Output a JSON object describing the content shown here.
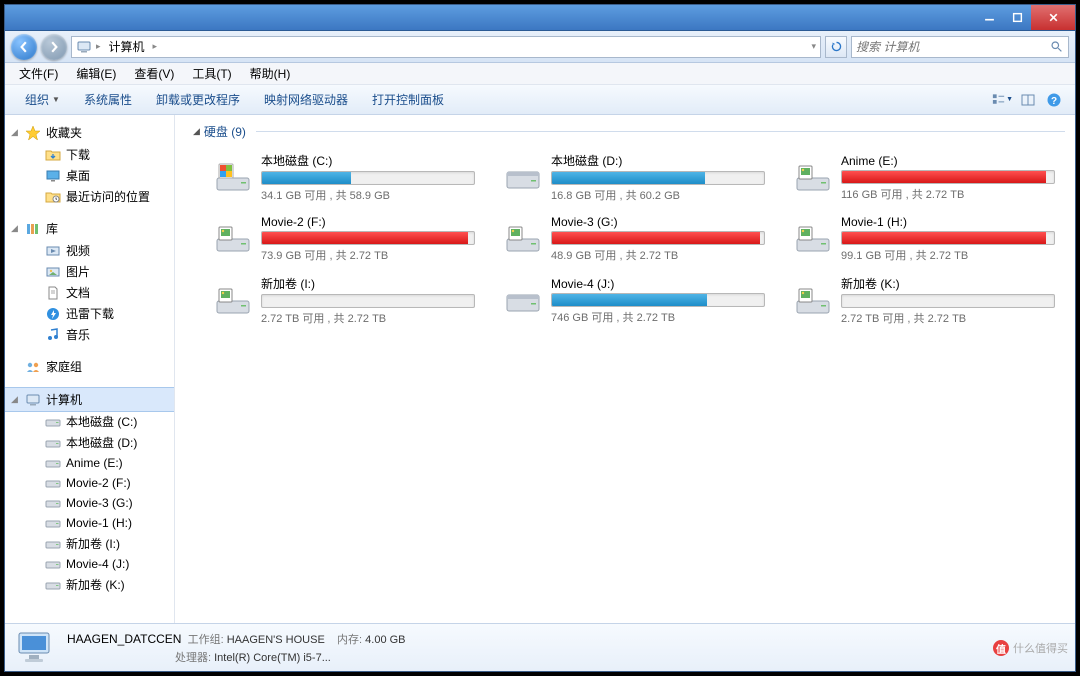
{
  "titlebar": {
    "min": "─",
    "max": "☐",
    "close": "✕"
  },
  "nav": {
    "address_crumb": "计算机",
    "search_placeholder": "搜索 计算机"
  },
  "menu": {
    "file": "文件(F)",
    "edit": "编辑(E)",
    "view": "查看(V)",
    "tools": "工具(T)",
    "help": "帮助(H)"
  },
  "toolbar": {
    "organize": "组织",
    "properties": "系统属性",
    "uninstall": "卸载或更改程序",
    "mapdrive": "映射网络驱动器",
    "controlpanel": "打开控制面板"
  },
  "sidebar": {
    "favorites": {
      "label": "收藏夹",
      "items": [
        "下载",
        "桌面",
        "最近访问的位置"
      ]
    },
    "libraries": {
      "label": "库",
      "items": [
        "视频",
        "图片",
        "文档",
        "迅雷下载",
        "音乐"
      ]
    },
    "homegroup": {
      "label": "家庭组"
    },
    "computer": {
      "label": "计算机",
      "items": [
        "本地磁盘 (C:)",
        "本地磁盘 (D:)",
        "Anime (E:)",
        "Movie-2 (F:)",
        "Movie-3 (G:)",
        "Movie-1 (H:)",
        "新加卷 (I:)",
        "Movie-4 (J:)",
        "新加卷 (K:)"
      ]
    }
  },
  "group": {
    "label": "硬盘 (9)"
  },
  "drives": [
    {
      "name": "本地磁盘 (C:)",
      "free": "34.1 GB 可用 , 共 58.9 GB",
      "fill_pct": 42,
      "color": "blue",
      "icon": "os"
    },
    {
      "name": "本地磁盘 (D:)",
      "free": "16.8 GB 可用 , 共 60.2 GB",
      "fill_pct": 72,
      "color": "blue",
      "icon": "hdd"
    },
    {
      "name": "Anime (E:)",
      "free": "116 GB 可用 , 共 2.72 TB",
      "fill_pct": 96,
      "color": "red",
      "icon": "ext"
    },
    {
      "name": "Movie-2 (F:)",
      "free": "73.9 GB 可用 , 共 2.72 TB",
      "fill_pct": 97,
      "color": "red",
      "icon": "ext"
    },
    {
      "name": "Movie-3 (G:)",
      "free": "48.9 GB 可用 , 共 2.72 TB",
      "fill_pct": 98,
      "color": "red",
      "icon": "ext"
    },
    {
      "name": "Movie-1 (H:)",
      "free": "99.1 GB 可用 , 共 2.72 TB",
      "fill_pct": 96,
      "color": "red",
      "icon": "ext"
    },
    {
      "name": "新加卷 (I:)",
      "free": "2.72 TB 可用 , 共 2.72 TB",
      "fill_pct": 0,
      "color": "blue",
      "icon": "ext"
    },
    {
      "name": "Movie-4 (J:)",
      "free": "746 GB 可用 , 共 2.72 TB",
      "fill_pct": 73,
      "color": "blue",
      "icon": "hdd"
    },
    {
      "name": "新加卷 (K:)",
      "free": "2.72 TB 可用 , 共 2.72 TB",
      "fill_pct": 0,
      "color": "blue",
      "icon": "ext"
    }
  ],
  "details": {
    "name": "HAAGEN_DATCCEN",
    "workgroup_label": "工作组:",
    "workgroup": "HAAGEN'S HOUSE",
    "memory_label": "内存:",
    "memory": "4.00 GB",
    "cpu_label": "处理器:",
    "cpu": "Intel(R) Core(TM) i5-7..."
  },
  "watermark": "什么值得买",
  "colors": {
    "bar_blue": "#2a9ed8",
    "bar_red": "#e03030",
    "link": "#1b4e8c"
  }
}
